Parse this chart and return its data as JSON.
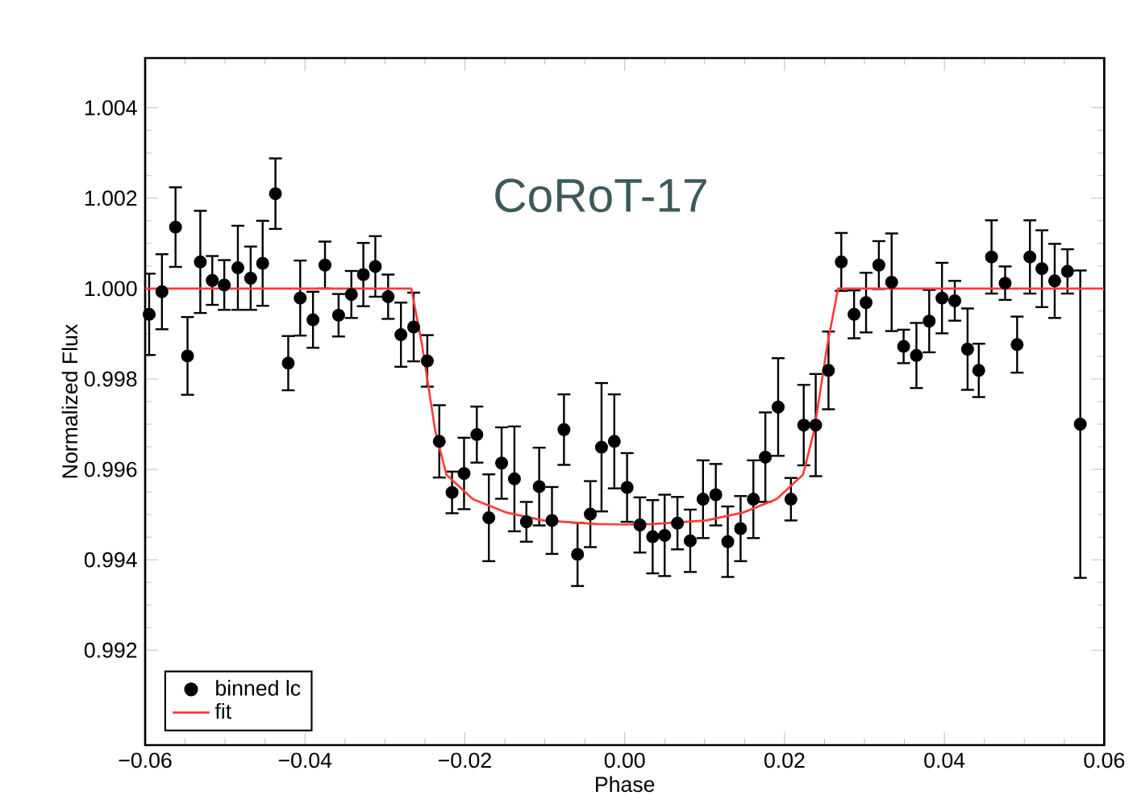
{
  "chart_data": {
    "type": "scatter",
    "xlabel": "Phase",
    "ylabel": "Normalized Flux",
    "annotations": [
      "CoRoT-17"
    ],
    "xlim": [
      -0.06,
      0.06
    ],
    "ylim": [
      0.9899,
      1.0051
    ],
    "xticks": [
      {
        "value": -0.06,
        "label": "−0.06"
      },
      {
        "value": -0.04,
        "label": "−0.04"
      },
      {
        "value": -0.02,
        "label": "−0.02"
      },
      {
        "value": 0,
        "label": "0.00"
      },
      {
        "value": 0.02,
        "label": "0.02"
      },
      {
        "value": 0.04,
        "label": "0.04"
      },
      {
        "value": 0.06,
        "label": "0.06"
      }
    ],
    "yticks": [
      {
        "value": 0.992,
        "label": "0.992"
      },
      {
        "value": 0.994,
        "label": "0.994"
      },
      {
        "value": 0.996,
        "label": "0.996"
      },
      {
        "value": 0.998,
        "label": "0.998"
      },
      {
        "value": 1.0,
        "label": "1.000"
      },
      {
        "value": 1.002,
        "label": "1.002"
      },
      {
        "value": 1.004,
        "label": "1.004"
      }
    ],
    "legend": "bottom left",
    "series": [
      {
        "name": "binned lc",
        "color": "#000000",
        "marker": "circle",
        "x": [
          -0.0595,
          -0.0579,
          -0.0562,
          -0.0547,
          -0.0531,
          -0.0516,
          -0.0501,
          -0.0484,
          -0.0468,
          -0.0453,
          -0.0437,
          -0.0421,
          -0.0406,
          -0.039,
          -0.0375,
          -0.0358,
          -0.0342,
          -0.0327,
          -0.0312,
          -0.0296,
          -0.028,
          -0.0264,
          -0.0247,
          -0.0232,
          -0.0216,
          -0.0201,
          -0.0185,
          -0.017,
          -0.0154,
          -0.0138,
          -0.0123,
          -0.0107,
          -0.0091,
          -0.0076,
          -0.0059,
          -0.0043,
          -0.0029,
          -0.0013,
          0.0003,
          0.0019,
          0.0035,
          0.005,
          0.0066,
          0.0082,
          0.0098,
          0.0114,
          0.0129,
          0.0145,
          0.0161,
          0.0176,
          0.0192,
          0.0208,
          0.0224,
          0.0239,
          0.0255,
          0.0271,
          0.0287,
          0.0302,
          0.0318,
          0.0334,
          0.0349,
          0.0365,
          0.0381,
          0.0397,
          0.0413,
          0.0429,
          0.0443,
          0.0459,
          0.0476,
          0.0491,
          0.0507,
          0.0522,
          0.0538,
          0.0554,
          0.057
        ],
        "values": [
          0.99943,
          0.99993,
          1.00136,
          0.99851,
          1.00059,
          1.00018,
          1.00008,
          1.00046,
          1.00023,
          1.00056,
          1.0021,
          0.99835,
          0.99979,
          0.99931,
          1.00052,
          0.99941,
          0.99987,
          1.00031,
          1.00049,
          0.99982,
          0.99898,
          0.99915,
          0.9984,
          0.99662,
          0.99549,
          0.99591,
          0.99677,
          0.99493,
          0.99614,
          0.99579,
          0.99484,
          0.99562,
          0.99487,
          0.99688,
          0.99412,
          0.99501,
          0.99649,
          0.99662,
          0.9956,
          0.99477,
          0.99451,
          0.99454,
          0.99481,
          0.99442,
          0.99534,
          0.99544,
          0.9944,
          0.99469,
          0.99534,
          0.99627,
          0.99738,
          0.99534,
          0.99698,
          0.99698,
          0.99819,
          1.00059,
          0.99943,
          0.99969,
          1.00052,
          1.00014,
          0.99872,
          0.99852,
          0.99928,
          0.99979,
          0.99973,
          0.99866,
          0.99819,
          1.0007,
          1.00012,
          0.99876,
          1.0007,
          1.00044,
          1.00017,
          1.00038,
          0.997
        ],
        "errors": [
          0.0009,
          0.00083,
          0.00088,
          0.00086,
          0.00113,
          0.00054,
          0.00055,
          0.00093,
          0.0007,
          0.00094,
          0.00078,
          0.0006,
          0.00083,
          0.00062,
          0.00052,
          0.00047,
          0.00052,
          0.0007,
          0.00067,
          0.00049,
          0.00071,
          0.00076,
          0.00057,
          0.0008,
          0.00046,
          0.00079,
          0.00062,
          0.00096,
          0.00079,
          0.00116,
          0.00044,
          0.00086,
          0.00074,
          0.00078,
          0.0007,
          0.00073,
          0.00142,
          0.00104,
          0.00076,
          0.00061,
          0.00081,
          0.0009,
          0.00058,
          0.00069,
          0.00086,
          0.00068,
          0.00078,
          0.00072,
          0.00086,
          0.00099,
          0.00108,
          0.00047,
          0.00089,
          0.00113,
          0.00086,
          0.00064,
          0.00053,
          0.00066,
          0.00053,
          0.00108,
          0.00037,
          0.00072,
          0.00069,
          0.00078,
          0.00044,
          0.0009,
          0.00059,
          0.00081,
          0.00037,
          0.00062,
          0.00081,
          0.00085,
          0.00082,
          0.00049,
          0.0034
        ]
      },
      {
        "name": "fit",
        "type": "line",
        "color": "#ff3b3b",
        "marker": "none",
        "x": [
          -0.06,
          -0.0267,
          -0.0254,
          -0.0237,
          -0.0223,
          -0.019,
          -0.0149,
          -0.0102,
          -0.0035,
          0,
          0.0035,
          0.0102,
          0.0149,
          0.019,
          0.0223,
          0.0237,
          0.0254,
          0.0267,
          0.06
        ],
        "values": [
          1.0,
          1.0,
          0.9988,
          0.99685,
          0.99588,
          0.99534,
          0.99505,
          0.99487,
          0.99479,
          0.99478,
          0.99479,
          0.99487,
          0.99505,
          0.99534,
          0.99588,
          0.99685,
          0.9988,
          1.0,
          1.0
        ]
      }
    ]
  }
}
